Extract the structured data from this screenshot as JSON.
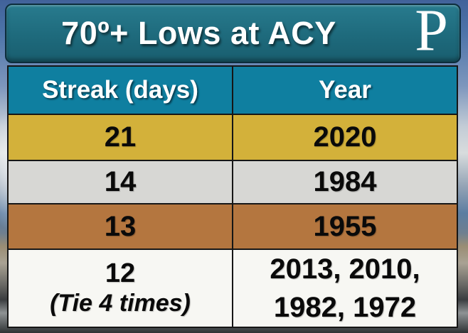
{
  "title_bar": {
    "title": "70º+ Lows at ACY",
    "logo_letter": "P"
  },
  "table": {
    "headers": [
      "Streak (days)",
      "Year"
    ],
    "rows": [
      {
        "streak": "21",
        "year": "2020",
        "color": "#d3b13a"
      },
      {
        "streak": "14",
        "year": "1984",
        "color": "#d7d7d4"
      },
      {
        "streak": "13",
        "year": "1955",
        "color": "#b4763f"
      },
      {
        "streak": "12",
        "streak_note": "(Tie 4 times)",
        "year_line1": "2013, 2010,",
        "year_line2": "1982, 1972",
        "color": "#f7f7f3"
      }
    ]
  },
  "colors": {
    "title_bar_bg": "#1e6a7c",
    "table_header_bg": "#0f7fa0",
    "row_gold": "#d3b13a",
    "row_gray": "#d7d7d4",
    "row_brown": "#b4763f",
    "row_white": "#f7f7f3"
  },
  "chart_data": {
    "type": "table",
    "title": "70º+ Lows at ACY",
    "columns": [
      "Streak (days)",
      "Year"
    ],
    "rows": [
      [
        "21",
        "2020"
      ],
      [
        "14",
        "1984"
      ],
      [
        "13",
        "1955"
      ],
      [
        "12 (Tie 4 times)",
        "2013, 2010, 1982, 1972"
      ]
    ]
  }
}
